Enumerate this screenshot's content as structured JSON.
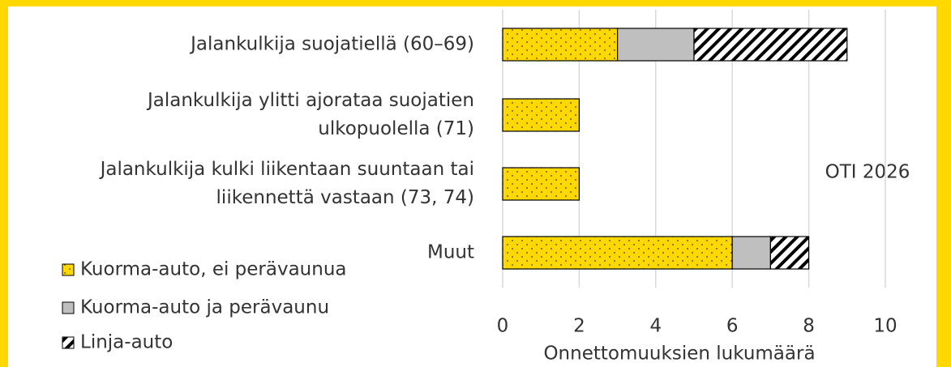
{
  "chart_data": {
    "type": "stacked-barh",
    "categories": [
      [
        "Jalankulkija suojatiellä (60–69)"
      ],
      [
        "Jalankulkija ylitti ajorataa suojatien",
        "ulkopuolella (71)"
      ],
      [
        "Jalankulkija kulki liikentaan suuntaan tai",
        "liikennettä vastaan (73, 74)"
      ],
      [
        "Muut"
      ]
    ],
    "series": [
      {
        "name": "Kuorma-auto, ei perävaunua",
        "color": "#ffd800",
        "pattern": "dots",
        "values": [
          3,
          2,
          2,
          6
        ]
      },
      {
        "name": "Kuorma-auto ja perävaunu",
        "color": "#bfbfbf",
        "pattern": "none",
        "values": [
          2,
          0,
          0,
          1
        ]
      },
      {
        "name": "Linja-auto",
        "color": "#ffffff",
        "pattern": "diagonal",
        "values": [
          4,
          0,
          0,
          1
        ]
      }
    ],
    "xlim": [
      0,
      10
    ],
    "xticks": [
      0,
      2,
      4,
      6,
      8,
      10
    ],
    "grid": true,
    "xlabel": "Onnettomuuksien lukumäärä",
    "annotation": "OTI 2026",
    "legend": "bottom-left"
  }
}
